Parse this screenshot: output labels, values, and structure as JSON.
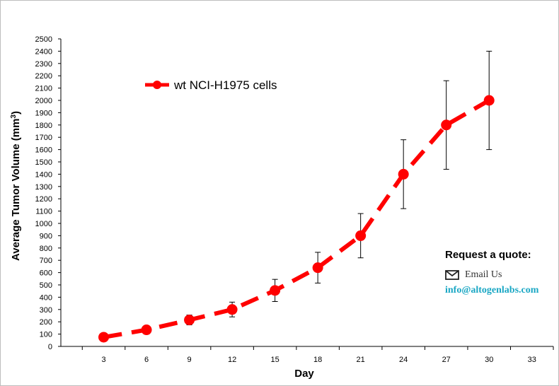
{
  "chart_data": {
    "type": "line",
    "title": "",
    "xlabel": "Day",
    "ylabel": "Average Tumor Volume (mm3)",
    "ylabel_main": "Average Tumor Volume (mm",
    "ylabel_sup": "3",
    "ylabel_close": ")",
    "xlim": [
      0,
      34.5
    ],
    "ylim": [
      0,
      2500
    ],
    "x_ticks": [
      3,
      6,
      9,
      12,
      15,
      18,
      21,
      24,
      27,
      30,
      33
    ],
    "y_ticks": [
      0,
      100,
      200,
      300,
      400,
      500,
      600,
      700,
      800,
      900,
      1000,
      1100,
      1200,
      1300,
      1400,
      1500,
      1600,
      1700,
      1800,
      1900,
      2000,
      2100,
      2200,
      2300,
      2400,
      2500
    ],
    "grid": false,
    "legend_position": "top-left",
    "series": [
      {
        "name": "wt NCI-H1975 cells",
        "color": "#ff0000",
        "line_style": "dashed",
        "x": [
          3,
          6,
          9,
          12,
          15,
          18,
          21,
          24,
          27,
          30
        ],
        "y": [
          75,
          135,
          215,
          300,
          455,
          640,
          900,
          1400,
          1800,
          2000
        ],
        "error": [
          0,
          0,
          40,
          60,
          90,
          125,
          180,
          280,
          360,
          400
        ]
      }
    ]
  },
  "quote": {
    "title": "Request a quote:",
    "email_label": "Email Us",
    "email_address": "info@altogenlabs.com",
    "icon": "envelope-icon",
    "accent_color": "#1aa7c4"
  }
}
